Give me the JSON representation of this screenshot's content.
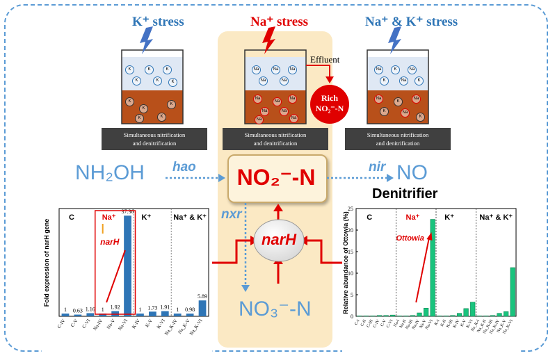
{
  "colors": {
    "blue": "#5b9bd5",
    "red": "#e00000",
    "sand": "#fbe9c4",
    "bar_blue": "#2e75b6",
    "bar_green": "#19c37d",
    "soil": "#b8501a",
    "water": "#dfe8f4"
  },
  "panels": {
    "k": {
      "title": "K⁺ stress",
      "caption_line1": "Simultaneous nitrification",
      "caption_line2": "and denitrification",
      "ion": "K"
    },
    "na": {
      "title": "Na⁺ stress",
      "caption_line1": "Simultaneous nitrification",
      "caption_line2": "and denitrification",
      "ion": "Na",
      "effluent": "Effluent",
      "rich_line1": "Rich",
      "rich_line2": "NO₂⁻-N"
    },
    "nak": {
      "title": "Na⁺ & K⁺ stress",
      "caption_line1": "Simultaneous nitrification",
      "caption_line2": "and denitrification"
    }
  },
  "pathway": {
    "nh2oh": "NH₂OH",
    "hao": "hao",
    "no2": "NO₂⁻-N",
    "nir": "nir",
    "no": "NO",
    "denitrifier": "Denitrifier",
    "nxr": "nxr",
    "narh": "narH",
    "no3": "NO₃⁻-N"
  },
  "chart_data": [
    {
      "type": "bar",
      "ylabel": "Fold expression of narH gene",
      "categories": [
        "C-IV",
        "C-V",
        "C-VI",
        "Na-IV",
        "Na-V",
        "Na-VI",
        "K-IV",
        "K-V",
        "K-VI",
        "Na_K-IV",
        "Na_K-V",
        "Na_K-VI"
      ],
      "values": [
        1,
        0.63,
        1.16,
        1,
        1.92,
        37.36,
        1,
        1.73,
        1.91,
        1,
        0.98,
        5.89
      ],
      "value_labels": [
        "1",
        "0.63",
        "1.16",
        "1",
        "1.92",
        "37.36",
        "1",
        "1.73",
        "1.91",
        "1",
        "0.98",
        "5.89"
      ],
      "ylim": [
        0,
        40
      ],
      "group_labels": [
        "C",
        "Na⁺",
        "K⁺",
        "Na⁺ & K⁺"
      ],
      "annotation": "narH"
    },
    {
      "type": "bar",
      "ylabel": "Relative abundance of Ottowia (%)",
      "categories": [
        "C-I",
        "C-II",
        "C-III",
        "C-IV",
        "C-V",
        "C-VI",
        "Na-I",
        "Na-II",
        "Na-III",
        "Na-IV",
        "Na-V",
        "Na-VI",
        "K-I",
        "K-II",
        "K-III",
        "K-IV",
        "K-V",
        "K-VI",
        "Na_K-I",
        "Na_K-II",
        "Na_K-III",
        "Na_K-IV",
        "Na_K-V",
        "Na_K-VI"
      ],
      "values": [
        0.1,
        0.1,
        0.1,
        0.2,
        0.2,
        0.3,
        0.1,
        0.1,
        0.2,
        0.8,
        1.9,
        22.5,
        0.1,
        0.1,
        0.2,
        0.7,
        1.8,
        3.3,
        0.1,
        0.1,
        0.2,
        0.7,
        1.1,
        11.3
      ],
      "ylim": [
        0,
        25
      ],
      "yticks": [
        "0",
        "5",
        "10",
        "15",
        "20",
        "25"
      ],
      "group_labels": [
        "C",
        "Na⁺",
        "K⁺",
        "Na⁺ & K⁺"
      ],
      "annotation": "Ottowia"
    }
  ]
}
